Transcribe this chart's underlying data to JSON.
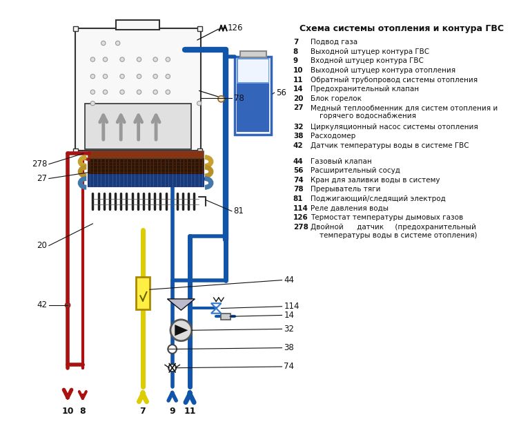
{
  "title": "Схема системы отопления и контура ГВС",
  "bg_color": "#ffffff",
  "legend_group1": [
    [
      "7",
      "Подвод газа"
    ],
    [
      "8",
      "Выходной штуцер контура ГВС"
    ],
    [
      "9",
      "Входной штуцер контура ГВС"
    ],
    [
      "10",
      "Выходной штуцер контура отопления"
    ],
    [
      "11",
      "Обратный трубопровод системы отопления"
    ],
    [
      "14",
      "Предохранительный клапан"
    ],
    [
      "20",
      "Блок горелок"
    ],
    [
      "27",
      "Медный теплообменник для систем отопления и\n    горячего водоснабжения"
    ],
    [
      "32",
      "Циркуляционный насос системы отопления"
    ],
    [
      "38",
      "Расходомер"
    ],
    [
      "42",
      "Датчик температуры воды в системе ГВС"
    ]
  ],
  "legend_group2": [
    [
      "44",
      "Газовый клапан"
    ],
    [
      "56",
      "Расширительный сосуд"
    ],
    [
      "74",
      "Кран для заливки воды в систему"
    ],
    [
      "78",
      "Прерыватель тяги"
    ],
    [
      "81",
      "Поджигающий/следящий электрод"
    ],
    [
      "114",
      "Реле давления воды"
    ],
    [
      "126",
      "Термостат температуры дымовых газов"
    ],
    [
      "278",
      "Двойной      датчик     (предохранительный\n    температуры воды в системе отопления)"
    ]
  ],
  "red": "#aa1111",
  "blue": "#1155aa",
  "blue2": "#3377cc",
  "yellow": "#ddcc00",
  "yellow2": "#ffee44",
  "gray": "#888888",
  "lgray": "#aaaaaa",
  "black": "#111111",
  "white": "#ffffff",
  "boiler_bg": "#f8f8f8",
  "boiler_border": "#333333",
  "heat_dark": "#3a1a0a",
  "heat_grid": "#6a3a1a",
  "blue_vessel": "#3366bb",
  "blue_vessel2": "#6699dd"
}
